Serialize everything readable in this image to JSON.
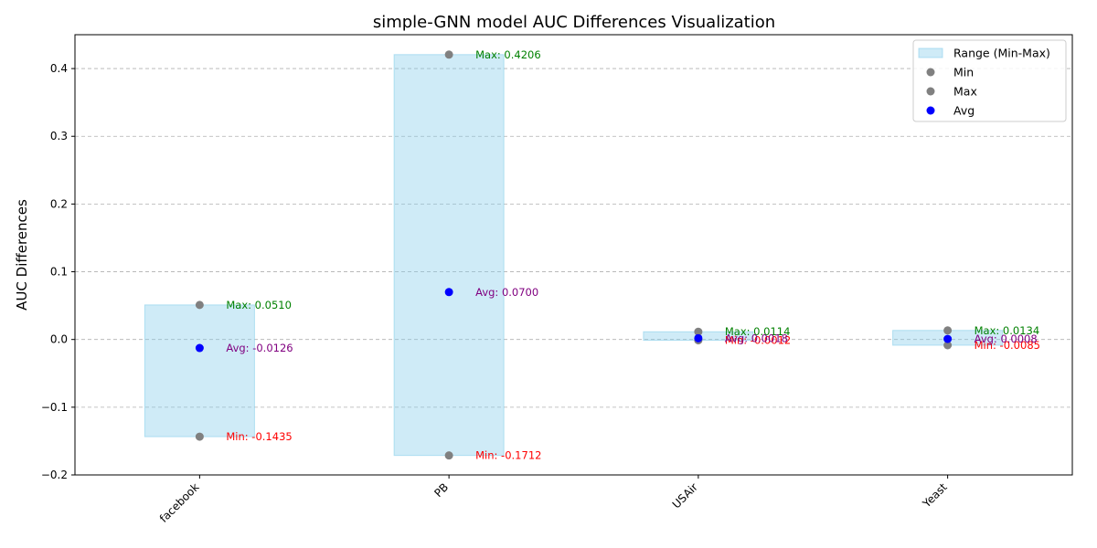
{
  "chart_data": {
    "type": "range",
    "title": "simple-GNN model AUC Differences Visualization",
    "xlabel": "",
    "ylabel": "AUC Differences",
    "ylim": [
      -0.2,
      0.45
    ],
    "yticks": [
      -0.2,
      -0.1,
      0.0,
      0.1,
      0.2,
      0.3,
      0.4
    ],
    "ytick_labels": [
      "−0.2",
      "−0.1",
      "0.0",
      "0.1",
      "0.2",
      "0.3",
      "0.4"
    ],
    "grid": "y-dashed",
    "categories": [
      "facebook",
      "PB",
      "USAir",
      "Yeast"
    ],
    "min": [
      -0.1435,
      -0.1712,
      -0.0012,
      -0.0085
    ],
    "max": [
      0.051,
      0.4206,
      0.0114,
      0.0134
    ],
    "avg": [
      -0.0126,
      0.07,
      0.0018,
      0.0008
    ],
    "min_labels": [
      "Min: -0.1435",
      "Min: -0.1712",
      "Min: -0.0012",
      "Min: -0.0085"
    ],
    "max_labels": [
      "Max: 0.0510",
      "Max: 0.4206",
      "Max: 0.0114",
      "Max: 0.0134"
    ],
    "avg_labels": [
      "Avg: -0.0126",
      "Avg: 0.0700",
      "Avg: 0.0018",
      "Avg: 0.0008"
    ],
    "legend": {
      "placement": "top-right",
      "entries": [
        "Range (Min-Max)",
        "Min",
        "Max",
        "Avg"
      ]
    },
    "colors": {
      "range_fill": "#87ceeb",
      "min_marker": "#808080",
      "max_marker": "#808080",
      "avg_marker": "#0000ff",
      "min_text": "#ff0000",
      "max_text": "#008000",
      "avg_text": "#800080"
    }
  }
}
